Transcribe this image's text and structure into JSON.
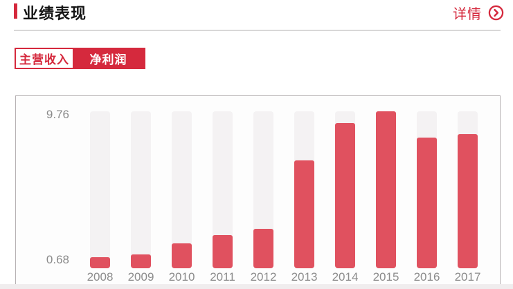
{
  "header": {
    "title": "业绩表现",
    "details_label": "详情"
  },
  "tabs": [
    {
      "label": "主营收入",
      "active": true
    },
    {
      "label": "净利润",
      "active": false
    }
  ],
  "chart_data": {
    "type": "bar",
    "title": "业绩表现",
    "selected_series": "主营收入",
    "categories": [
      "2008",
      "2009",
      "2010",
      "2011",
      "2012",
      "2013",
      "2014",
      "2015",
      "2016",
      "2017"
    ],
    "values": [
      0.68,
      0.86,
      1.54,
      2.07,
      2.47,
      6.72,
      9.03,
      9.76,
      8.13,
      8.35
    ],
    "y_axis_max_label": "9.76",
    "y_axis_min_label": "0.68",
    "ylim": [
      0,
      9.76
    ],
    "grid": false,
    "legend": "none",
    "bar_color": "#e0515f",
    "track_color": "#f4f2f3"
  },
  "colors": {
    "accent_red": "#d5293d",
    "bar_red": "#e0515f",
    "track_gray": "#f4f2f3",
    "card_border": "#b7b2b4",
    "axis_text": "#8a8a8a"
  }
}
